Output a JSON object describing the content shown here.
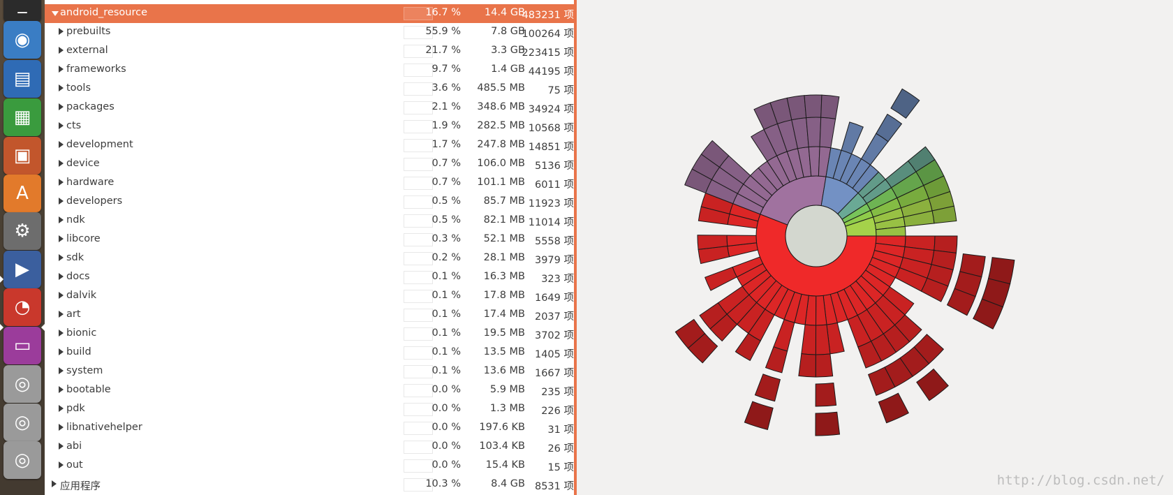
{
  "launcher": {
    "items": [
      {
        "name": "terminal-icon",
        "color": "#2b2b2b",
        "glyph": "_"
      },
      {
        "name": "chromium-icon",
        "color": "#3a7dc4",
        "glyph": "◉"
      },
      {
        "name": "writer-icon",
        "color": "#2f6bb5",
        "glyph": "▤"
      },
      {
        "name": "calc-icon",
        "color": "#3a9b3e",
        "glyph": "▦"
      },
      {
        "name": "impress-icon",
        "color": "#c2562c",
        "glyph": "▣"
      },
      {
        "name": "software-center-icon",
        "color": "#e27a2b",
        "glyph": "A"
      },
      {
        "name": "system-settings-icon",
        "color": "#6d6d6d",
        "glyph": "⚙"
      },
      {
        "name": "video-editor-icon",
        "color": "#3b5f9e",
        "glyph": "▶"
      },
      {
        "name": "disk-usage-analyzer-icon",
        "color": "#c9382c",
        "glyph": "◔"
      },
      {
        "name": "workspace-switcher-icon",
        "color": "#9b3c9b",
        "glyph": "▭"
      },
      {
        "name": "drive-icon-1",
        "color": "#9a9a9a",
        "glyph": "◎"
      },
      {
        "name": "drive-icon-2",
        "color": "#9a9a9a",
        "glyph": "◎"
      },
      {
        "name": "drive-icon-3",
        "color": "#9a9a9a",
        "glyph": "◎"
      }
    ]
  },
  "tree": {
    "rows": [
      {
        "name": "android_resource",
        "pct": "16.7 %",
        "size": "14.4 GB",
        "count": "483231 项",
        "selected": true,
        "expanded": true,
        "level": 0
      },
      {
        "name": "prebuilts",
        "pct": "55.9 %",
        "size": "7.8 GB",
        "count": "100264 项",
        "level": 1
      },
      {
        "name": "external",
        "pct": "21.7 %",
        "size": "3.3 GB",
        "count": "223415 项",
        "level": 1
      },
      {
        "name": "frameworks",
        "pct": "9.7 %",
        "size": "1.4 GB",
        "count": "44195 项",
        "level": 1
      },
      {
        "name": "tools",
        "pct": "3.6 %",
        "size": "485.5 MB",
        "count": "75 项",
        "level": 1
      },
      {
        "name": "packages",
        "pct": "2.1 %",
        "size": "348.6 MB",
        "count": "34924 项",
        "level": 1
      },
      {
        "name": "cts",
        "pct": "1.9 %",
        "size": "282.5 MB",
        "count": "10568 项",
        "level": 1
      },
      {
        "name": "development",
        "pct": "1.7 %",
        "size": "247.8 MB",
        "count": "14851 项",
        "level": 1
      },
      {
        "name": "device",
        "pct": "0.7 %",
        "size": "106.0 MB",
        "count": "5136 项",
        "level": 1
      },
      {
        "name": "hardware",
        "pct": "0.7 %",
        "size": "101.1 MB",
        "count": "6011 项",
        "level": 1
      },
      {
        "name": "developers",
        "pct": "0.5 %",
        "size": "85.7 MB",
        "count": "11923 项",
        "level": 1
      },
      {
        "name": "ndk",
        "pct": "0.5 %",
        "size": "82.1 MB",
        "count": "11014 项",
        "level": 1
      },
      {
        "name": "libcore",
        "pct": "0.3 %",
        "size": "52.1 MB",
        "count": "5558 项",
        "level": 1
      },
      {
        "name": "sdk",
        "pct": "0.2 %",
        "size": "28.1 MB",
        "count": "3979 项",
        "level": 1
      },
      {
        "name": "docs",
        "pct": "0.1 %",
        "size": "16.3 MB",
        "count": "323 项",
        "level": 1
      },
      {
        "name": "dalvik",
        "pct": "0.1 %",
        "size": "17.8 MB",
        "count": "1649 项",
        "level": 1
      },
      {
        "name": "art",
        "pct": "0.1 %",
        "size": "17.4 MB",
        "count": "2037 项",
        "level": 1
      },
      {
        "name": "bionic",
        "pct": "0.1 %",
        "size": "19.5 MB",
        "count": "3702 项",
        "level": 1
      },
      {
        "name": "build",
        "pct": "0.1 %",
        "size": "13.5 MB",
        "count": "1405 项",
        "level": 1
      },
      {
        "name": "system",
        "pct": "0.1 %",
        "size": "13.6 MB",
        "count": "1667 项",
        "level": 1
      },
      {
        "name": "bootable",
        "pct": "0.0 %",
        "size": "5.9 MB",
        "count": "235 项",
        "level": 1
      },
      {
        "name": "pdk",
        "pct": "0.0 %",
        "size": "1.3 MB",
        "count": "226 项",
        "level": 1
      },
      {
        "name": "libnativehelper",
        "pct": "0.0 %",
        "size": "197.6 KB",
        "count": "31 项",
        "level": 1
      },
      {
        "name": "abi",
        "pct": "0.0 %",
        "size": "103.4 KB",
        "count": "26 项",
        "level": 1
      },
      {
        "name": "out",
        "pct": "0.0 %",
        "size": "15.4 KB",
        "count": "15 项",
        "level": 1
      },
      {
        "name": "应用程序",
        "pct": "10.3 %",
        "size": "8.4 GB",
        "count": "8531 项",
        "level": 0
      }
    ]
  },
  "chart": {
    "watermark": "http://blog.csdn.net/",
    "center_color": "#d3d7cf",
    "ring1": [
      {
        "name": "prebuilts",
        "share": 0.559,
        "color": "#ef2929"
      },
      {
        "name": "external",
        "share": 0.217,
        "color": "#a0729f"
      },
      {
        "name": "frameworks",
        "share": 0.097,
        "color": "#7391c4"
      },
      {
        "name": "tools",
        "share": 0.036,
        "color": "#6aa995"
      },
      {
        "name": "packages",
        "share": 0.021,
        "color": "#78c45a"
      },
      {
        "name": "cts",
        "share": 0.019,
        "color": "#8fcc4a"
      },
      {
        "name": "other",
        "share": 0.051,
        "color": "#a5d24a"
      }
    ]
  }
}
